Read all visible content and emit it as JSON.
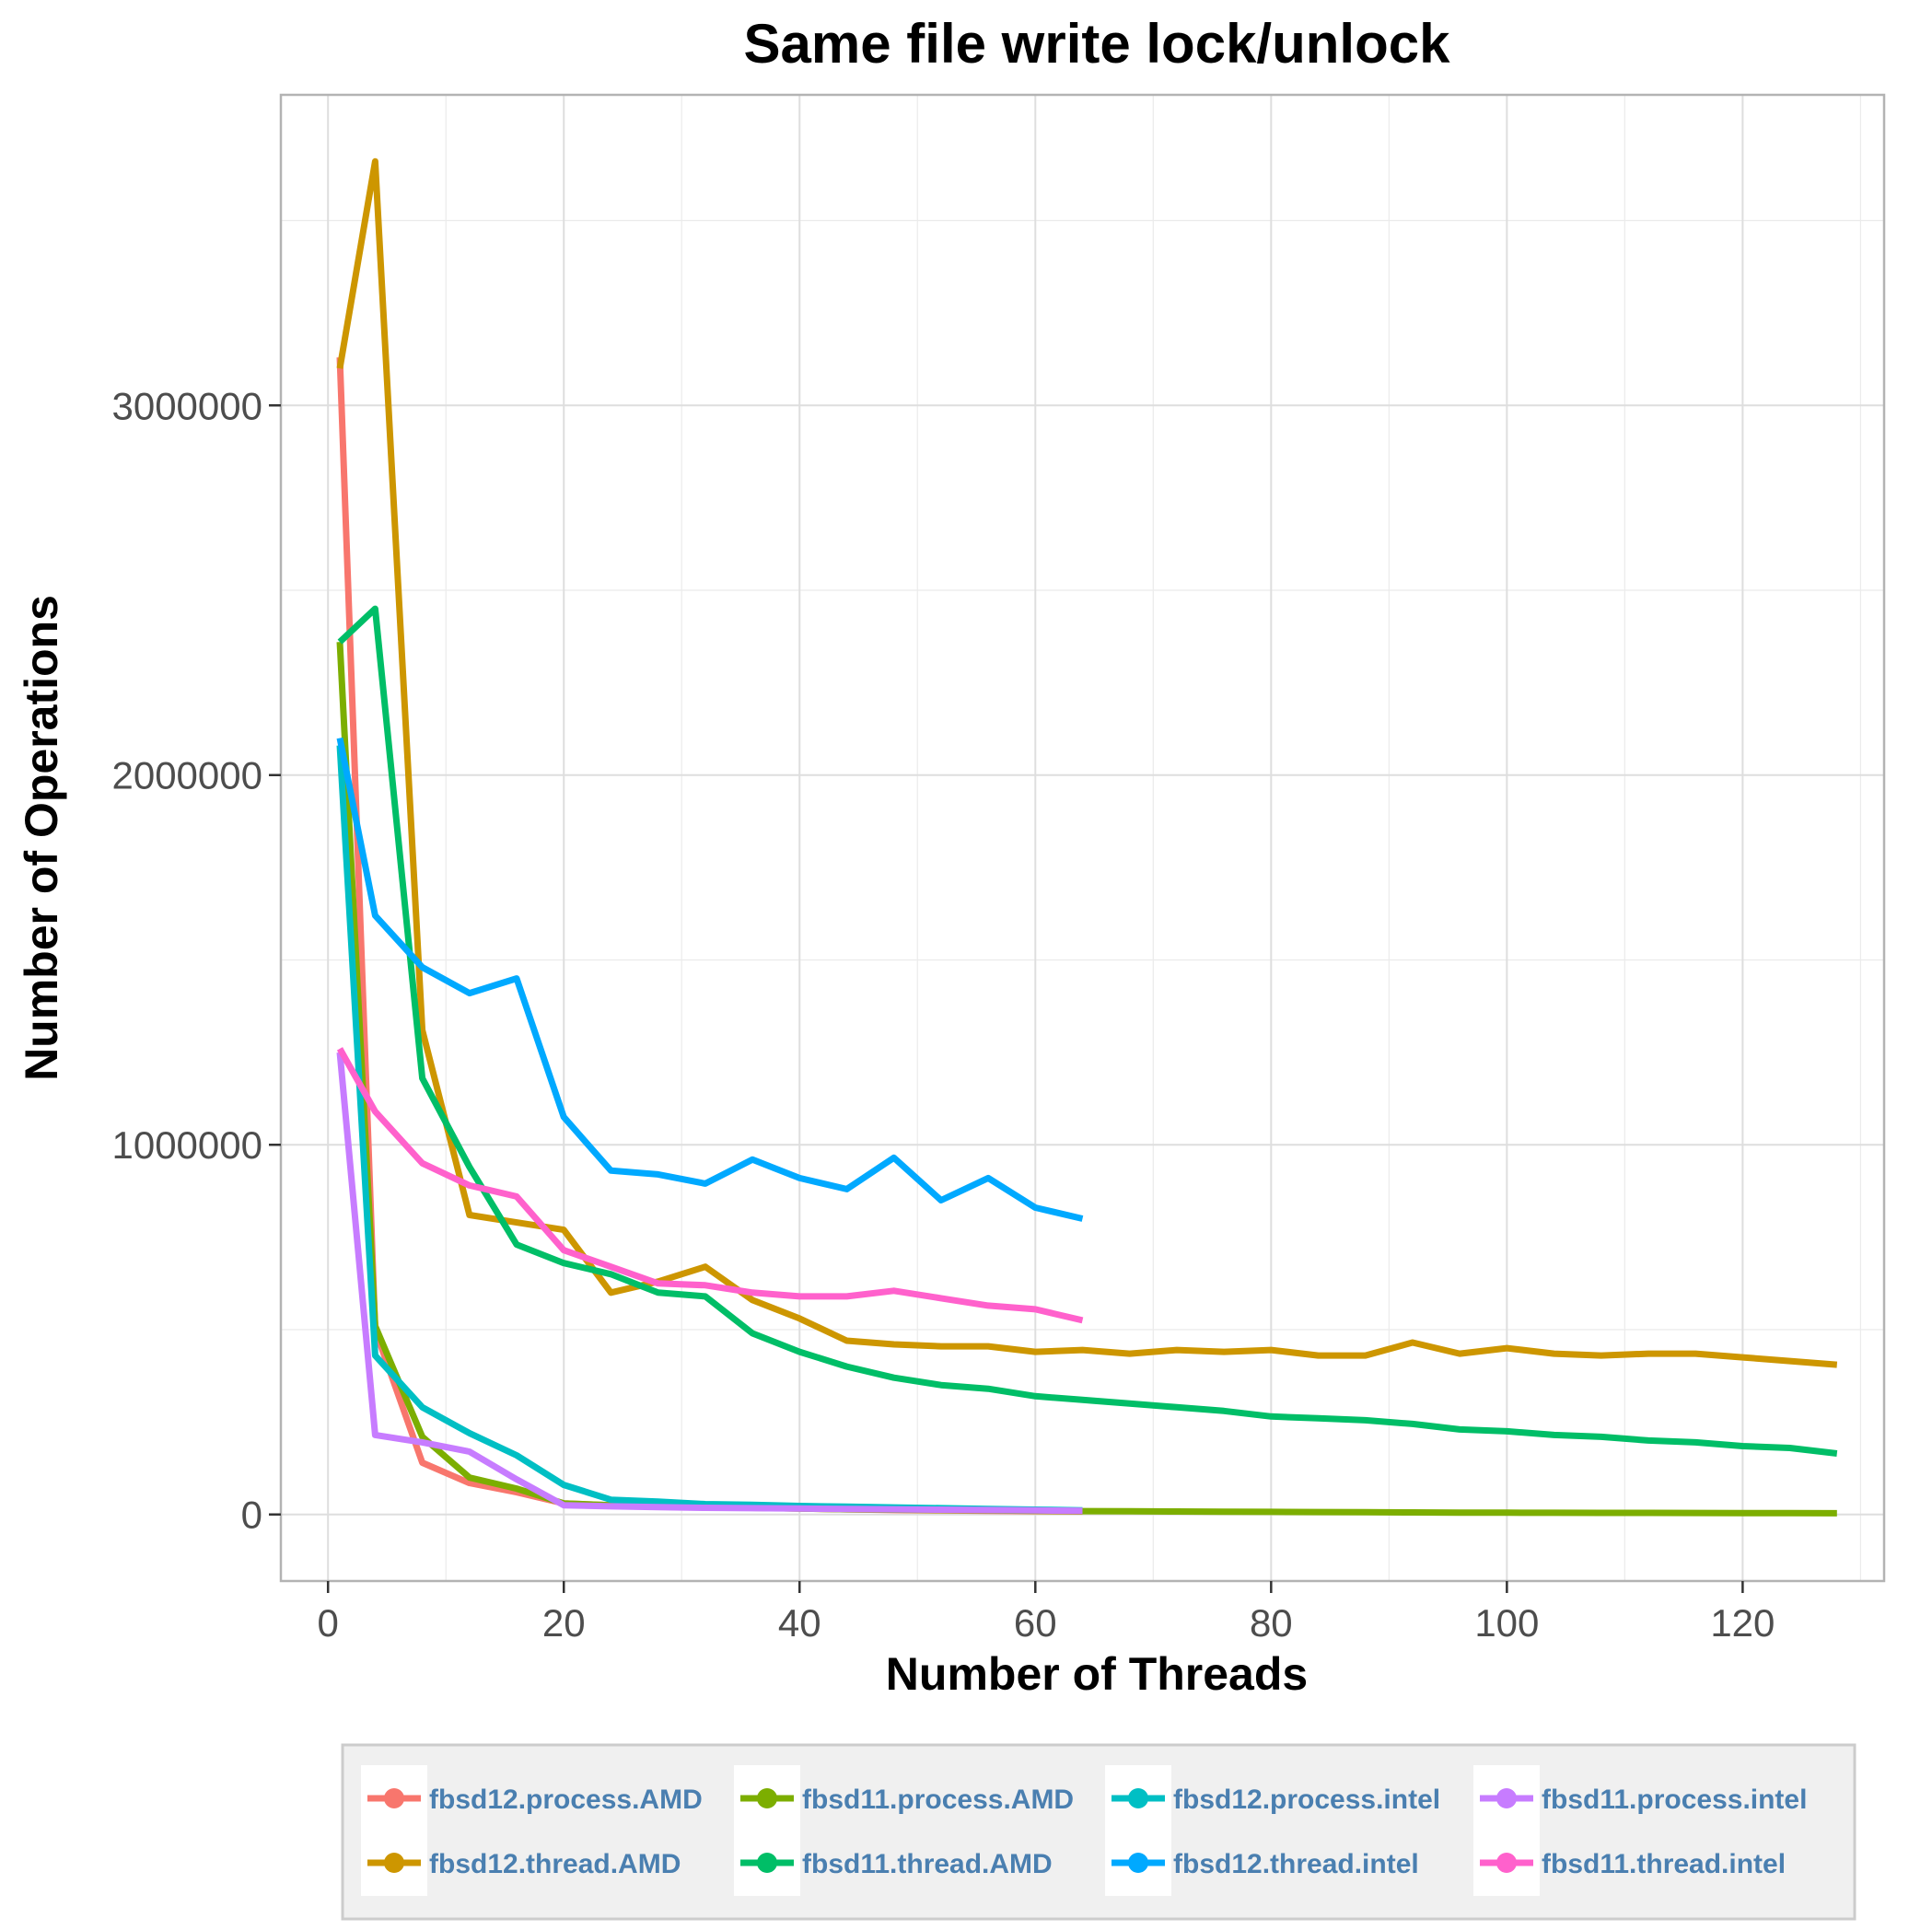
{
  "chart_data": {
    "type": "line",
    "title": "Same file write lock/unlock",
    "xlabel": "Number of Threads",
    "ylabel": "Number of Operations",
    "xlim": [
      -4,
      132
    ],
    "ylim": [
      -180000,
      3840000
    ],
    "x_ticks": [
      0,
      20,
      40,
      60,
      80,
      100,
      120
    ],
    "x_tick_labels": [
      "0",
      "20",
      "40",
      "60",
      "80",
      "100",
      "120"
    ],
    "y_ticks": [
      0,
      1000000,
      2000000,
      3000000
    ],
    "y_tick_labels": [
      "0",
      "1000000",
      "2000000",
      "3000000"
    ],
    "grid": true,
    "legend_position": "bottom",
    "series": [
      {
        "name": "fbsd12.process.AMD",
        "color": "#F8766D",
        "x": [
          1,
          4,
          8,
          12,
          16,
          20,
          24,
          28,
          32,
          36,
          40,
          44,
          48,
          52,
          56,
          60,
          64
        ],
        "y": [
          3130000,
          500000,
          140000,
          85000,
          60000,
          30000,
          25000,
          22000,
          20000,
          18000,
          16000,
          14000,
          12000,
          11000,
          10000,
          9000,
          8000
        ]
      },
      {
        "name": "fbsd11.process.AMD",
        "color": "#7CAE00",
        "x": [
          1,
          4,
          8,
          12,
          16,
          20,
          24,
          28,
          32,
          36,
          40,
          44,
          48,
          52,
          56,
          60,
          64,
          68,
          72,
          76,
          80,
          84,
          88,
          92,
          96,
          100,
          104,
          108,
          112,
          116,
          120,
          124,
          128
        ],
        "y": [
          2360000,
          510000,
          210000,
          100000,
          70000,
          30000,
          25000,
          22000,
          20000,
          18000,
          16000,
          14000,
          13000,
          12000,
          11000,
          10000,
          9000,
          8500,
          8000,
          7500,
          7000,
          6500,
          6000,
          5500,
          5000,
          4800,
          4600,
          4400,
          4200,
          4000,
          3800,
          3600,
          3400
        ]
      },
      {
        "name": "fbsd12.process.intel",
        "color": "#00BFC4",
        "x": [
          1,
          4,
          8,
          12,
          16,
          20,
          24,
          28,
          32,
          36,
          40,
          44,
          48,
          52,
          56,
          60,
          64
        ],
        "y": [
          2080000,
          430000,
          290000,
          220000,
          160000,
          80000,
          40000,
          35000,
          28000,
          26000,
          23000,
          21000,
          19000,
          17000,
          15000,
          13000,
          11000
        ]
      },
      {
        "name": "fbsd11.process.intel",
        "color": "#C77CFF",
        "x": [
          1,
          4,
          8,
          12,
          16,
          20,
          24,
          28,
          32,
          36,
          40,
          44,
          48,
          52,
          56,
          60,
          64
        ],
        "y": [
          1250000,
          215000,
          195000,
          170000,
          95000,
          25000,
          22000,
          20000,
          18000,
          17000,
          16000,
          15000,
          14000,
          13000,
          12000,
          11000,
          10000
        ]
      },
      {
        "name": "fbsd12.thread.AMD",
        "color": "#CD9600",
        "x": [
          1,
          4,
          8,
          12,
          16,
          20,
          24,
          28,
          32,
          36,
          40,
          44,
          48,
          52,
          56,
          60,
          64,
          68,
          72,
          76,
          80,
          84,
          88,
          92,
          96,
          100,
          104,
          108,
          112,
          116,
          120,
          124,
          128
        ],
        "y": [
          3100000,
          3660000,
          1310000,
          810000,
          790000,
          770000,
          600000,
          630000,
          670000,
          580000,
          530000,
          470000,
          460000,
          455000,
          455000,
          440000,
          445000,
          435000,
          445000,
          440000,
          445000,
          430000,
          430000,
          465000,
          435000,
          450000,
          435000,
          430000,
          435000,
          435000,
          425000,
          415000,
          405000
        ]
      },
      {
        "name": "fbsd11.thread.AMD",
        "color": "#00BE67",
        "x": [
          1,
          4,
          8,
          12,
          16,
          20,
          24,
          28,
          32,
          36,
          40,
          44,
          48,
          52,
          56,
          60,
          64,
          68,
          72,
          76,
          80,
          84,
          88,
          92,
          96,
          100,
          104,
          108,
          112,
          116,
          120,
          124,
          128
        ],
        "y": [
          2360000,
          2450000,
          1180000,
          940000,
          730000,
          680000,
          650000,
          600000,
          590000,
          490000,
          440000,
          400000,
          370000,
          350000,
          340000,
          320000,
          310000,
          300000,
          290000,
          280000,
          265000,
          260000,
          255000,
          245000,
          230000,
          225000,
          215000,
          210000,
          200000,
          195000,
          185000,
          180000,
          165000
        ]
      },
      {
        "name": "fbsd12.thread.intel",
        "color": "#00A9FF",
        "x": [
          1,
          4,
          8,
          12,
          16,
          20,
          24,
          28,
          32,
          36,
          40,
          44,
          48,
          52,
          56,
          60,
          64
        ],
        "y": [
          2100000,
          1620000,
          1480000,
          1410000,
          1450000,
          1075000,
          930000,
          920000,
          895000,
          960000,
          910000,
          880000,
          965000,
          850000,
          910000,
          830000,
          800000
        ]
      },
      {
        "name": "fbsd11.thread.intel",
        "color": "#FF61CC",
        "x": [
          1,
          4,
          8,
          12,
          16,
          20,
          24,
          28,
          32,
          36,
          40,
          44,
          48,
          52,
          56,
          60,
          64
        ],
        "y": [
          1260000,
          1090000,
          950000,
          890000,
          860000,
          715000,
          670000,
          625000,
          620000,
          600000,
          590000,
          590000,
          605000,
          585000,
          565000,
          555000,
          525000
        ]
      }
    ]
  }
}
